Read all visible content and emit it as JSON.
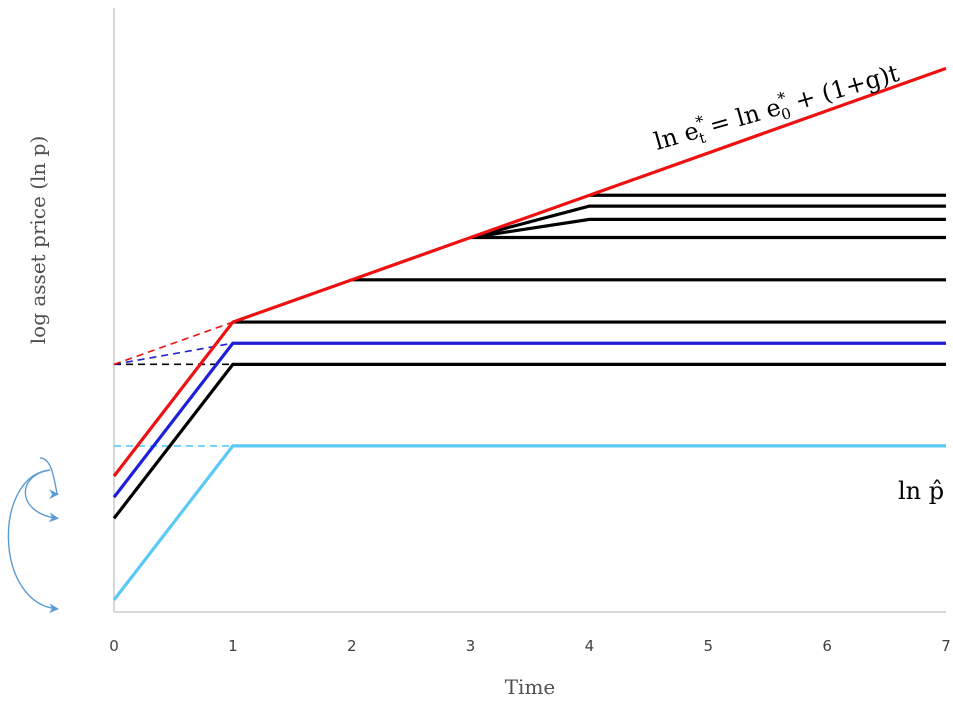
{
  "chart_data": {
    "type": "line",
    "xlabel": "Time",
    "ylabel": "log asset price (ln p)",
    "x_ticks": [
      "0",
      "1",
      "2",
      "3",
      "4",
      "5",
      "6",
      "7"
    ],
    "xlim": [
      0,
      7
    ],
    "ylim": [
      0,
      10
    ],
    "grid": false,
    "legend": "none",
    "colors": {
      "red": "#ee1111",
      "blue": "#1f1fd9",
      "black": "#000000",
      "light_blue": "#5bc8f5",
      "arrow": "#5b9bd5"
    },
    "series": [
      {
        "color": "red",
        "style": "solid",
        "x": [
          0,
          1,
          7
        ],
        "y": [
          2.25,
          4.8,
          9.0
        ]
      },
      {
        "color": "red",
        "style": "dashed",
        "x": [
          0,
          1
        ],
        "y": [
          4.1,
          4.8
        ]
      },
      {
        "color": "blue",
        "style": "solid",
        "x": [
          0,
          1,
          7
        ],
        "y": [
          1.9,
          4.45,
          4.45
        ]
      },
      {
        "color": "blue",
        "style": "dashed",
        "x": [
          0,
          1
        ],
        "y": [
          4.1,
          4.45
        ]
      },
      {
        "color": "black",
        "style": "solid",
        "x": [
          0,
          1,
          7
        ],
        "y": [
          1.55,
          4.1,
          4.1
        ]
      },
      {
        "color": "black",
        "style": "dashed",
        "x": [
          0,
          1
        ],
        "y": [
          4.1,
          4.1
        ]
      },
      {
        "color": "black",
        "style": "solid",
        "x": [
          1,
          7
        ],
        "y": [
          4.8,
          4.8
        ]
      },
      {
        "color": "black",
        "style": "solid",
        "x": [
          2,
          7
        ],
        "y": [
          5.5,
          5.5
        ]
      },
      {
        "color": "black",
        "style": "solid",
        "x": [
          3,
          7
        ],
        "y": [
          6.2,
          6.2
        ]
      },
      {
        "color": "black",
        "style": "solid",
        "x": [
          3,
          4,
          7
        ],
        "y": [
          6.2,
          6.5,
          6.5
        ]
      },
      {
        "color": "black",
        "style": "solid",
        "x": [
          3,
          4,
          7
        ],
        "y": [
          6.2,
          6.72,
          6.72
        ]
      },
      {
        "color": "black",
        "style": "solid",
        "x": [
          4,
          7
        ],
        "y": [
          6.9,
          6.9
        ]
      },
      {
        "color": "light_blue",
        "style": "solid",
        "x": [
          0,
          1,
          7
        ],
        "y": [
          0.2,
          2.75,
          2.75
        ]
      },
      {
        "color": "light_blue",
        "style": "dashed",
        "x": [
          0,
          1
        ],
        "y": [
          2.75,
          2.75
        ]
      }
    ],
    "arrows": [
      {
        "from_y": 2.35,
        "to_y": 1.55
      },
      {
        "from_y": 2.35,
        "to_y": 0.05
      }
    ],
    "annotations": {
      "red_line_label": {
        "ln": "ln e",
        "sup": "*",
        "sub": "t",
        "eq": " = ln e",
        "sup2": "*",
        "sub2": "0",
        "rest": " + (1+g)t"
      },
      "phat_label": "ln p̂"
    }
  }
}
